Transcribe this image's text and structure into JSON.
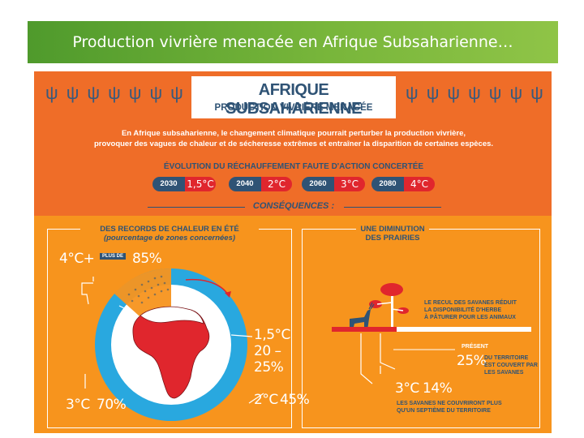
{
  "slide_title": "Production vivrière menacée en Afrique Subsaharienne…",
  "header": {
    "title": "AFRIQUE SUBSAHARIENNE",
    "subtitle": "PRODUCTION VIVRIÈRE MENACÉE"
  },
  "intro": {
    "line1": "En Afrique subsaharienne, le changement climatique pourrait perturber la production vivrière,",
    "line2": "provoquer des vagues de chaleur et de sécheresse extrêmes et entraîner la disparition de certaines espèces."
  },
  "evolution": {
    "title": "ÉVOLUTION DU RÉCHAUFFEMENT FAUTE D'ACTION CONCERTÉE",
    "items": [
      {
        "year": "2030",
        "temp": "1,5°C"
      },
      {
        "year": "2040",
        "temp": "2°C"
      },
      {
        "year": "2060",
        "temp": "3°C"
      },
      {
        "year": "2080",
        "temp": "4°C"
      }
    ]
  },
  "consequences": "CONSÉQUENCES :",
  "heat": {
    "title1": "DES RECORDS DE CHALEUR EN ÉTÉ",
    "title2": "(pourcentage de zones concernées)",
    "four": "4°C+",
    "plus_de": "PLUS DE",
    "four_pct": "85%",
    "onefive": "1,5°C",
    "onefive_pct": "20 – 25%",
    "three": "3°C",
    "three_pct": "70%",
    "two": "2°C",
    "two_pct": "45%"
  },
  "grass": {
    "title1": "UNE DIMINUTION",
    "title2": "DES PRAIRIES",
    "recul1": "LE RECUL DES SAVANES RÉDUIT",
    "recul2": "LA DISPONIBILITÉ D'HERBE",
    "recul3": "À PÂTURER POUR LES ANIMAUX",
    "present": "PRÉSENT",
    "present_pct": "25%",
    "present_txt1": "DU TERRITOIRE",
    "present_txt2": "EST COUVERT PAR",
    "present_txt3": "LES SAVANES",
    "three": "3°C",
    "three_pct": "14%",
    "future1": "LES SAVANES NE COUVRIRONT PLUS",
    "future2": "QU'UN SEPTIÈME DU TERRITOIRE"
  },
  "colors": {
    "brand_green": "#6aaf35",
    "orange": "#ef6d28",
    "amber": "#f7941d",
    "navy": "#2f5375",
    "red": "#e0262d",
    "sky": "#29a8df"
  }
}
